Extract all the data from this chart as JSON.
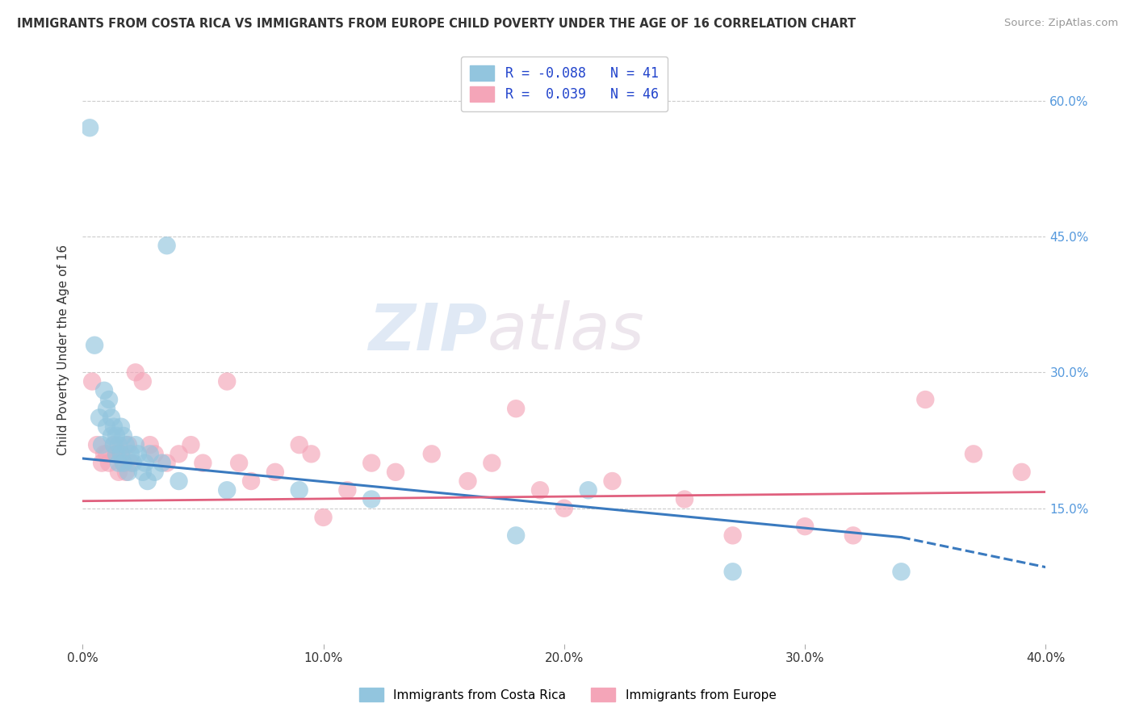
{
  "title": "IMMIGRANTS FROM COSTA RICA VS IMMIGRANTS FROM EUROPE CHILD POVERTY UNDER THE AGE OF 16 CORRELATION CHART",
  "source": "Source: ZipAtlas.com",
  "ylabel": "Child Poverty Under the Age of 16",
  "xlabel": "",
  "legend_label1": "Immigrants from Costa Rica",
  "legend_label2": "Immigrants from Europe",
  "R1": -0.088,
  "N1": 41,
  "R2": 0.039,
  "N2": 46,
  "xlim": [
    0.0,
    0.4
  ],
  "ylim": [
    0.0,
    0.65
  ],
  "yticks": [
    0.15,
    0.3,
    0.45,
    0.6
  ],
  "ytick_labels": [
    "15.0%",
    "30.0%",
    "45.0%",
    "60.0%"
  ],
  "xticks": [
    0.0,
    0.1,
    0.2,
    0.3,
    0.4
  ],
  "xtick_labels": [
    "0.0%",
    "10.0%",
    "20.0%",
    "30.0%",
    "40.0%"
  ],
  "color1": "#92c5de",
  "color2": "#f4a5b8",
  "line1_color": "#3a7abf",
  "line2_color": "#e0607e",
  "watermark_zip": "ZIP",
  "watermark_atlas": "atlas",
  "scatter1_x": [
    0.003,
    0.005,
    0.007,
    0.008,
    0.009,
    0.01,
    0.01,
    0.011,
    0.012,
    0.012,
    0.013,
    0.013,
    0.014,
    0.014,
    0.015,
    0.015,
    0.016,
    0.016,
    0.017,
    0.017,
    0.018,
    0.019,
    0.02,
    0.021,
    0.022,
    0.023,
    0.025,
    0.026,
    0.027,
    0.028,
    0.03,
    0.033,
    0.035,
    0.04,
    0.06,
    0.09,
    0.12,
    0.18,
    0.21,
    0.27,
    0.34
  ],
  "scatter1_y": [
    0.57,
    0.33,
    0.25,
    0.22,
    0.28,
    0.26,
    0.24,
    0.27,
    0.23,
    0.25,
    0.24,
    0.22,
    0.21,
    0.23,
    0.22,
    0.2,
    0.24,
    0.21,
    0.23,
    0.2,
    0.22,
    0.19,
    0.21,
    0.2,
    0.22,
    0.21,
    0.19,
    0.2,
    0.18,
    0.21,
    0.19,
    0.2,
    0.44,
    0.18,
    0.17,
    0.17,
    0.16,
    0.12,
    0.17,
    0.08,
    0.08
  ],
  "scatter2_x": [
    0.004,
    0.006,
    0.008,
    0.009,
    0.01,
    0.011,
    0.013,
    0.014,
    0.015,
    0.016,
    0.017,
    0.018,
    0.019,
    0.02,
    0.022,
    0.025,
    0.028,
    0.03,
    0.035,
    0.04,
    0.045,
    0.05,
    0.06,
    0.065,
    0.07,
    0.08,
    0.09,
    0.095,
    0.1,
    0.11,
    0.12,
    0.13,
    0.145,
    0.16,
    0.17,
    0.18,
    0.19,
    0.2,
    0.22,
    0.25,
    0.27,
    0.3,
    0.32,
    0.35,
    0.37,
    0.39
  ],
  "scatter2_y": [
    0.29,
    0.22,
    0.2,
    0.21,
    0.21,
    0.2,
    0.22,
    0.21,
    0.19,
    0.21,
    0.2,
    0.19,
    0.22,
    0.2,
    0.3,
    0.29,
    0.22,
    0.21,
    0.2,
    0.21,
    0.22,
    0.2,
    0.29,
    0.2,
    0.18,
    0.19,
    0.22,
    0.21,
    0.14,
    0.17,
    0.2,
    0.19,
    0.21,
    0.18,
    0.2,
    0.26,
    0.17,
    0.15,
    0.18,
    0.16,
    0.12,
    0.13,
    0.12,
    0.27,
    0.21,
    0.19
  ],
  "line1_x_start": 0.0,
  "line1_x_solid_end": 0.34,
  "line1_x_dash_end": 0.4,
  "line1_y_start": 0.205,
  "line1_y_solid_end": 0.118,
  "line1_y_dash_end": 0.085,
  "line2_x_start": 0.0,
  "line2_x_end": 0.4,
  "line2_y_start": 0.158,
  "line2_y_end": 0.168,
  "background_color": "#ffffff",
  "grid_color": "#cccccc"
}
